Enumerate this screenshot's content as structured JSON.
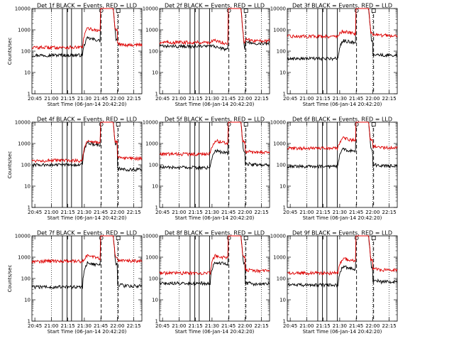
{
  "colors": {
    "events": "#000000",
    "lld": "#dd0000",
    "axes": "#000000"
  },
  "chart_data": [
    {
      "type": "line",
      "title": "Det 1f BLACK = Events, RED = LLD",
      "xlabel": "Start Time (06-Jan-14 20:42:20)",
      "ylabel": "Counts/sec",
      "ylim": [
        1,
        10000
      ],
      "yscale": "log",
      "grid": false,
      "ytick_labels": [
        "1",
        "10",
        "100",
        "1000",
        "10000"
      ],
      "xtick_labels": [
        "20:45",
        "21:00",
        "21:15",
        "21:30",
        "21:45",
        "22:00",
        "22:15"
      ],
      "series": [
        {
          "name": "Events",
          "base": 65,
          "flare": 450,
          "post": null
        },
        {
          "name": "LLD",
          "base": 150,
          "flare": 1300,
          "post": 200
        }
      ]
    },
    {
      "type": "line",
      "title": "Det 2f BLACK = Events, RED = LLD",
      "xlabel": "Start Time (06-Jan-14 20:42:20)",
      "ylabel": "",
      "ylim": [
        1,
        10000
      ],
      "yscale": "log",
      "grid": false,
      "ytick_labels": [
        "1",
        "10",
        "100",
        "1000",
        "10000"
      ],
      "xtick_labels": [
        "20:45",
        "21:00",
        "21:15",
        "21:30",
        "21:45",
        "22:00",
        "22:15"
      ],
      "series": [
        {
          "name": "Events",
          "base": 170,
          "flare": 170,
          "post": 240
        },
        {
          "name": "LLD",
          "base": 260,
          "flare": 330,
          "post": 310
        }
      ]
    },
    {
      "type": "line",
      "title": "Det 3f BLACK = Events, RED = LLD",
      "xlabel": "Start Time (06-Jan-14 20:42:20)",
      "ylabel": "",
      "ylim": [
        1,
        10000
      ],
      "yscale": "log",
      "grid": false,
      "ytick_labels": [
        "1",
        "10",
        "100",
        "1000",
        "10000"
      ],
      "xtick_labels": [
        "20:45",
        "21:00",
        "21:15",
        "21:30",
        "21:45",
        "22:00",
        "22:15"
      ],
      "series": [
        {
          "name": "Events",
          "base": 45,
          "flare": 350,
          "post": 65
        },
        {
          "name": "LLD",
          "base": 500,
          "flare": 950,
          "post": 550
        }
      ]
    },
    {
      "type": "line",
      "title": "Det 4f BLACK = Events, RED = LLD",
      "xlabel": "Start Time (06-Jan-14 20:42:20)",
      "ylabel": "Counts/sec",
      "ylim": [
        1,
        10000
      ],
      "yscale": "log",
      "grid": false,
      "ytick_labels": [
        "1",
        "10",
        "100",
        "1000",
        "10000"
      ],
      "xtick_labels": [
        "20:45",
        "21:00",
        "21:15",
        "21:30",
        "21:45",
        "22:00",
        "22:15"
      ],
      "series": [
        {
          "name": "Events",
          "base": 100,
          "flare": 1200,
          "post": 60
        },
        {
          "name": "LLD",
          "base": 160,
          "flare": 1500,
          "post": 200
        }
      ]
    },
    {
      "type": "line",
      "title": "Det 5f BLACK = Events, RED = LLD",
      "xlabel": "Start Time (06-Jan-14 20:42:20)",
      "ylabel": "",
      "ylim": [
        1,
        10000
      ],
      "yscale": "log",
      "grid": false,
      "ytick_labels": [
        "1",
        "10",
        "100",
        "1000",
        "10000"
      ],
      "xtick_labels": [
        "20:45",
        "21:00",
        "21:15",
        "21:30",
        "21:45",
        "22:00",
        "22:15"
      ],
      "series": [
        {
          "name": "Events",
          "base": 75,
          "flare": 500,
          "post": 100
        },
        {
          "name": "LLD",
          "base": 320,
          "flare": 1500,
          "post": 380
        }
      ]
    },
    {
      "type": "line",
      "title": "Det 6f BLACK = Events, RED = LLD",
      "xlabel": "Start Time (06-Jan-14 20:42:20)",
      "ylabel": "",
      "ylim": [
        1,
        10000
      ],
      "yscale": "log",
      "grid": false,
      "ytick_labels": [
        "1",
        "10",
        "100",
        "1000",
        "10000"
      ],
      "xtick_labels": [
        "20:45",
        "21:00",
        "21:15",
        "21:30",
        "21:45",
        "22:00",
        "22:15"
      ],
      "series": [
        {
          "name": "Events",
          "base": 85,
          "flare": 600,
          "post": 90
        },
        {
          "name": "LLD",
          "base": 600,
          "flare": 2000,
          "post": 650
        }
      ]
    },
    {
      "type": "line",
      "title": "Det 7f BLACK = Events, RED = LLD",
      "xlabel": "Start Time (06-Jan-14 20:42:20)",
      "ylabel": "Counts/sec",
      "ylim": [
        1,
        10000
      ],
      "yscale": "log",
      "grid": false,
      "ytick_labels": [
        "1",
        "10",
        "100",
        "1000",
        "10000"
      ],
      "xtick_labels": [
        "20:45",
        "21:00",
        "21:15",
        "21:30",
        "21:45",
        "22:00",
        "22:15"
      ],
      "series": [
        {
          "name": "Events",
          "base": 40,
          "flare": 600,
          "post": 45
        },
        {
          "name": "LLD",
          "base": 650,
          "flare": 1300,
          "post": 680
        }
      ]
    },
    {
      "type": "line",
      "title": "Det 8f BLACK = Events, RED = LLD",
      "xlabel": "Start Time (06-Jan-14 20:42:20)",
      "ylabel": "",
      "ylim": [
        1,
        10000
      ],
      "yscale": "log",
      "grid": false,
      "ytick_labels": [
        "1",
        "10",
        "100",
        "1000",
        "10000"
      ],
      "xtick_labels": [
        "20:45",
        "21:00",
        "21:15",
        "21:30",
        "21:45",
        "22:00",
        "22:15"
      ],
      "series": [
        {
          "name": "Events",
          "base": 60,
          "flare": 650,
          "post": 55
        },
        {
          "name": "LLD",
          "base": 180,
          "flare": 1300,
          "post": 230
        }
      ]
    },
    {
      "type": "line",
      "title": "Det 9f BLACK = Events, RED = LLD",
      "xlabel": "Start Time (06-Jan-14 20:42:20)",
      "ylabel": "",
      "ylim": [
        1,
        10000
      ],
      "yscale": "log",
      "grid": false,
      "ytick_labels": [
        "1",
        "10",
        "100",
        "1000",
        "10000"
      ],
      "xtick_labels": [
        "20:45",
        "21:00",
        "21:15",
        "21:30",
        "21:45",
        "22:00",
        "22:15"
      ],
      "series": [
        {
          "name": "Events",
          "base": 50,
          "flare": 400,
          "post": 70
        },
        {
          "name": "LLD",
          "base": 180,
          "flare": 950,
          "post": 250
        }
      ]
    }
  ]
}
